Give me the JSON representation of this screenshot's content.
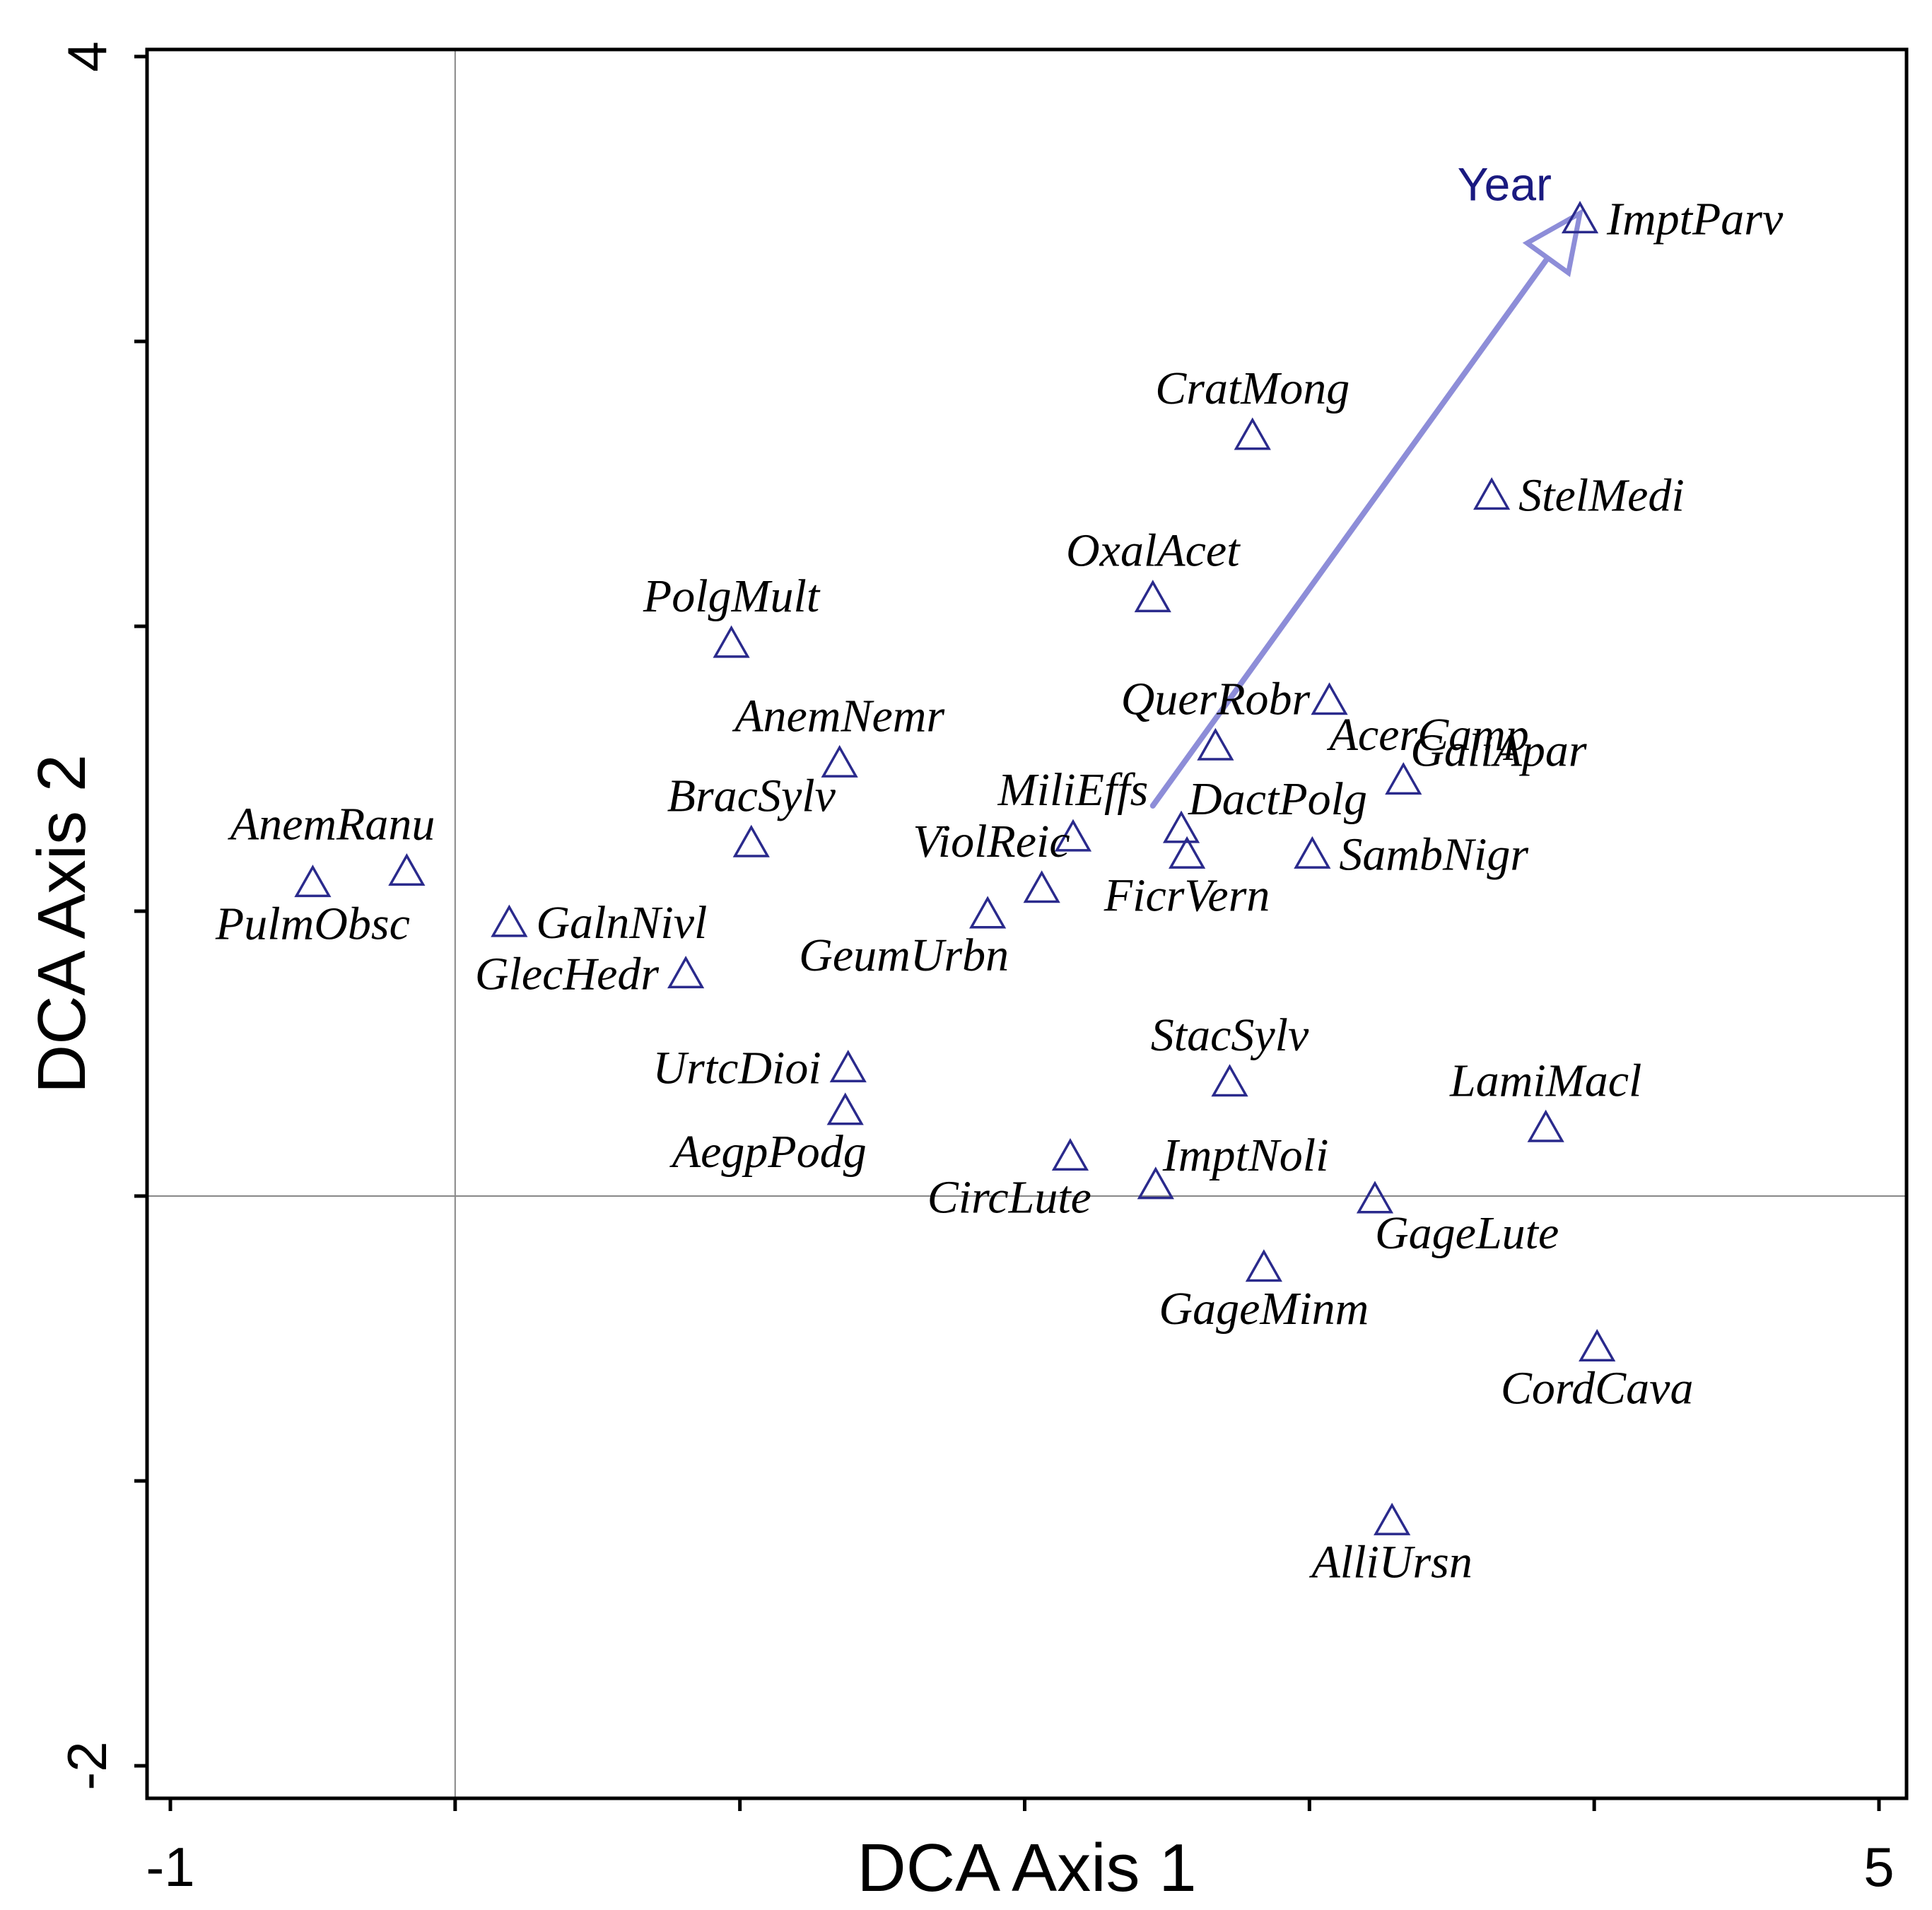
{
  "chart_data": {
    "type": "scatter",
    "xlabel": "DCA Axis 1",
    "ylabel": "DCA Axis 2",
    "xlim": [
      -1,
      5
    ],
    "ylim": [
      -2,
      4
    ],
    "x_tick_labels": [
      {
        "value": -1,
        "label": "-1"
      },
      {
        "value": 5,
        "label": "5"
      }
    ],
    "y_tick_labels": [
      {
        "value": 4,
        "label": "4"
      },
      {
        "value": -2,
        "label": "-2"
      }
    ],
    "x_ticks": [
      -1,
      0,
      1,
      2,
      3,
      4,
      5
    ],
    "y_ticks": [
      -2,
      -1,
      0,
      1,
      2,
      3,
      4
    ],
    "reference_lines": {
      "x": 0,
      "y": 0
    },
    "marker": "open-triangle",
    "colors": {
      "marker": "#2a2a8c",
      "arrow": "#8d8dd8",
      "arrow_label": "#1a1a80",
      "frame": "#000000",
      "gridline": "#888888"
    },
    "arrow": {
      "label": "Year",
      "from": [
        2.45,
        1.37
      ],
      "to": [
        3.95,
        3.45
      ]
    },
    "points": [
      {
        "name": "ImptParv",
        "x": 3.95,
        "y": 3.43,
        "label_pos": "right"
      },
      {
        "name": "CratMong",
        "x": 2.8,
        "y": 2.67,
        "label_pos": "above"
      },
      {
        "name": "StelMedi",
        "x": 3.64,
        "y": 2.46,
        "label_pos": "right"
      },
      {
        "name": "OxalAcet",
        "x": 2.45,
        "y": 2.1,
        "label_pos": "above"
      },
      {
        "name": "PolgMult",
        "x": 0.97,
        "y": 1.94,
        "label_pos": "above"
      },
      {
        "name": "AcerCamp",
        "x": 3.07,
        "y": 1.74,
        "label_pos": "below-right"
      },
      {
        "name": "QuerRobr",
        "x": 2.67,
        "y": 1.58,
        "label_pos": "above"
      },
      {
        "name": "AnemNemr",
        "x": 1.35,
        "y": 1.52,
        "label_pos": "above"
      },
      {
        "name": "GaliApar",
        "x": 3.33,
        "y": 1.46,
        "label_pos": "above-right"
      },
      {
        "name": "DactPolg",
        "x": 2.55,
        "y": 1.29,
        "label_pos": "above-right"
      },
      {
        "name": "MiliEffs",
        "x": 2.17,
        "y": 1.26,
        "label_pos": "above"
      },
      {
        "name": "BracSylv",
        "x": 1.04,
        "y": 1.24,
        "label_pos": "above"
      },
      {
        "name": "FicrVern",
        "x": 2.57,
        "y": 1.2,
        "label_pos": "below"
      },
      {
        "name": "SambNigr",
        "x": 3.01,
        "y": 1.2,
        "label_pos": "right"
      },
      {
        "name": "AnemRanu",
        "x": -0.17,
        "y": 1.14,
        "label_pos": "above-left"
      },
      {
        "name": "PulmObsc",
        "x": -0.5,
        "y": 1.1,
        "label_pos": "below"
      },
      {
        "name": "ViolReic",
        "x": 2.06,
        "y": 1.08,
        "label_pos": "above-left"
      },
      {
        "name": "GeumUrbn",
        "x": 1.87,
        "y": 0.99,
        "label_pos": "below-left"
      },
      {
        "name": "GalnNivl",
        "x": 0.19,
        "y": 0.96,
        "label_pos": "right"
      },
      {
        "name": "GlecHedr",
        "x": 0.81,
        "y": 0.78,
        "label_pos": "left"
      },
      {
        "name": "UrtcDioi",
        "x": 1.38,
        "y": 0.45,
        "label_pos": "left"
      },
      {
        "name": "StacSylv",
        "x": 2.72,
        "y": 0.4,
        "label_pos": "above"
      },
      {
        "name": "AegpPodg",
        "x": 1.37,
        "y": 0.3,
        "label_pos": "below-left"
      },
      {
        "name": "LamiMacl",
        "x": 3.83,
        "y": 0.24,
        "label_pos": "above"
      },
      {
        "name": "CircLute",
        "x": 2.16,
        "y": 0.14,
        "label_pos": "below-left"
      },
      {
        "name": "ImptNoli",
        "x": 2.46,
        "y": 0.04,
        "label_pos": "above-right"
      },
      {
        "name": "GageLute",
        "x": 3.23,
        "y": -0.01,
        "label_pos": "below-right"
      },
      {
        "name": "GageMinm",
        "x": 2.84,
        "y": -0.25,
        "label_pos": "below"
      },
      {
        "name": "CordCava",
        "x": 4.01,
        "y": -0.53,
        "label_pos": "below"
      },
      {
        "name": "AlliUrsn",
        "x": 3.29,
        "y": -1.14,
        "label_pos": "below"
      }
    ]
  }
}
